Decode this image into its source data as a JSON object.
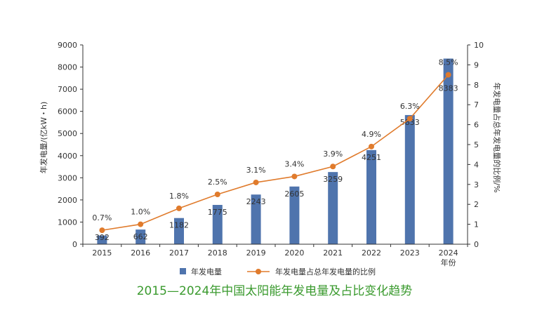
{
  "caption": "2015—2024年中国太阳能年发电量及占比变化趋势",
  "chart_data": {
    "type": "bar+line",
    "categories": [
      "2015",
      "2016",
      "2017",
      "2018",
      "2019",
      "2020",
      "2021",
      "2022",
      "2023",
      "2024"
    ],
    "x_last_sublabel": "年份",
    "series": [
      {
        "name": "年发电量",
        "kind": "bar",
        "axis": "left",
        "values": [
          392,
          662,
          1182,
          1775,
          2243,
          2605,
          3259,
          4251,
          5833,
          8383
        ],
        "labels": [
          "392",
          "662",
          "1182",
          "1775",
          "2243",
          "2605",
          "3259",
          "4251",
          "5833",
          "8383"
        ]
      },
      {
        "name": "年发电量占总年发电量的比例",
        "kind": "line",
        "axis": "right",
        "values": [
          0.7,
          1.0,
          1.8,
          2.5,
          3.1,
          3.4,
          3.9,
          4.9,
          6.3,
          8.5
        ],
        "labels": [
          "0.7%",
          "1.0%",
          "1.8%",
          "2.5%",
          "3.1%",
          "3.4%",
          "3.9%",
          "4.9%",
          "6.3%",
          "8.5%"
        ]
      }
    ],
    "y_left": {
      "label": "年发电量/(亿kW・h)",
      "range": [
        0,
        9000
      ],
      "ticks": [
        0,
        1000,
        2000,
        3000,
        4000,
        5000,
        6000,
        7000,
        8000,
        9000
      ]
    },
    "y_right": {
      "label": "年发电量占总年发电量的比例/%",
      "range": [
        0,
        10
      ],
      "ticks": [
        0,
        1,
        2,
        3,
        4,
        5,
        6,
        7,
        8,
        9,
        10
      ]
    },
    "legend_position": "bottom",
    "colors": {
      "bar": "#4f74ad",
      "line": "#e07b2c",
      "marker": "#e07b2c",
      "axis": "#333333",
      "text": "#333333"
    }
  }
}
